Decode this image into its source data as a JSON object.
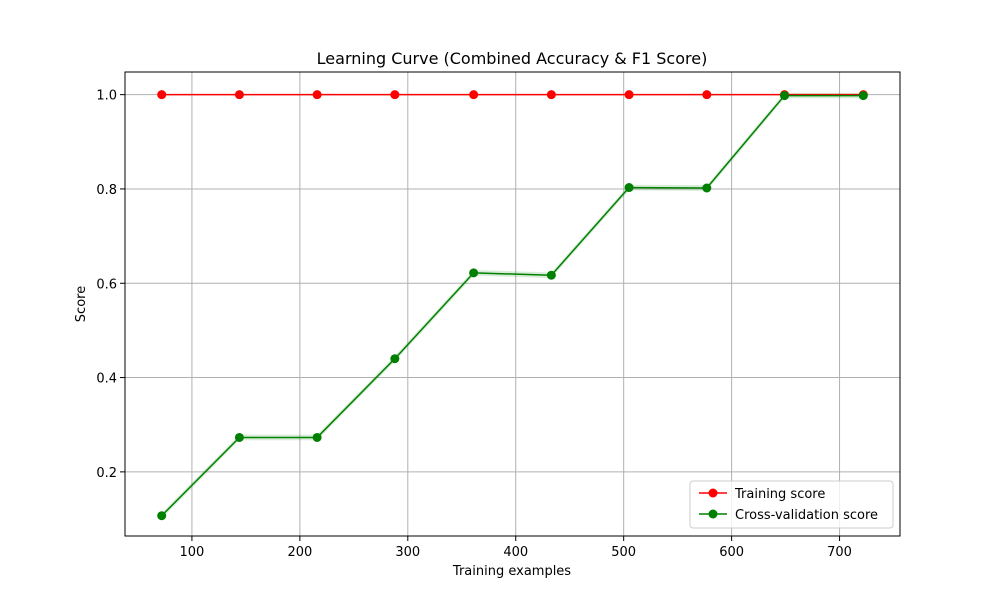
{
  "chart_data": {
    "type": "line",
    "title": "Learning Curve (Combined Accuracy & F1 Score)",
    "xlabel": "Training examples",
    "ylabel": "Score",
    "xlim": [
      38,
      756
    ],
    "ylim": [
      0.064,
      1.048
    ],
    "xticks": [
      100,
      200,
      300,
      400,
      500,
      600,
      700
    ],
    "yticks": [
      0.2,
      0.4,
      0.6,
      0.8,
      1.0
    ],
    "ytick_labels": [
      "0.2",
      "0.4",
      "0.6",
      "0.8",
      "1.0"
    ],
    "grid": true,
    "legend_position": "lower-right",
    "x": [
      72,
      144,
      216,
      288,
      361,
      433,
      505,
      577,
      649,
      722
    ],
    "series": [
      {
        "name": "Training score",
        "color": "#ff0000",
        "values": [
          1.0,
          1.0,
          1.0,
          1.0,
          1.0,
          1.0,
          1.0,
          1.0,
          1.0,
          1.0
        ],
        "band": 0.0
      },
      {
        "name": "Cross-validation score",
        "color": "#008000",
        "values": [
          0.107,
          0.273,
          0.273,
          0.44,
          0.622,
          0.617,
          0.803,
          0.802,
          0.998,
          0.998
        ],
        "band": 0.006
      }
    ]
  }
}
